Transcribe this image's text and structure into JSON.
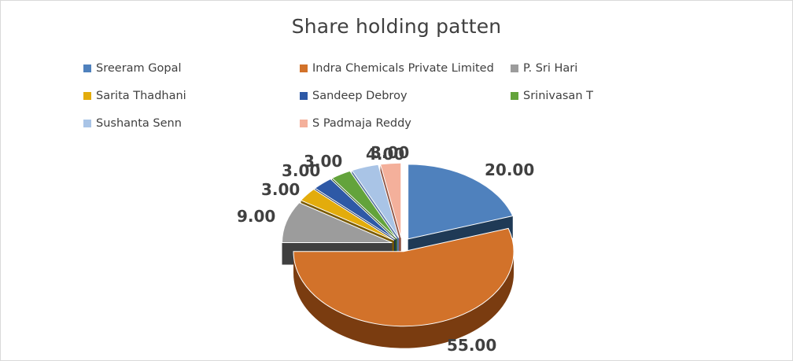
{
  "chart_data": {
    "type": "pie",
    "style": "3d-exploded",
    "title": "Share holding patten",
    "legend_position": "top",
    "slices": [
      {
        "name": "Sreeram Gopal",
        "value": 20.0,
        "label": "20.00",
        "color": "#4f81bd",
        "side_color": "#1f3a56"
      },
      {
        "name": "Indra Chemicals Private Limited",
        "value": 55.0,
        "label": "55.00",
        "color": "#d2722a",
        "side_color": "#7a3c10"
      },
      {
        "name": "P. Sri Hari",
        "value": 9.0,
        "label": "9.00",
        "color": "#9c9c9c",
        "side_color": "#3f3f3f"
      },
      {
        "name": "Sarita Thadhani",
        "value": 3.0,
        "label": "3.00",
        "color": "#e3ac0c",
        "side_color": "#7a5a00"
      },
      {
        "name": "Sandeep Debroy",
        "value": 3.0,
        "label": "3.00",
        "color": "#2e59a6",
        "side_color": "#152d58"
      },
      {
        "name": "Srinivasan T",
        "value": 3.0,
        "label": "3.00",
        "color": "#63a33b",
        "side_color": "#2f5a17"
      },
      {
        "name": "Sushanta Senn",
        "value": 4.0,
        "label": "4.00",
        "color": "#a9c4e6",
        "side_color": "#5673a0"
      },
      {
        "name": "S Padmaja Reddy",
        "value": 3.0,
        "label": "3.00",
        "color": "#f4b09b",
        "side_color": "#8f5342"
      }
    ]
  }
}
